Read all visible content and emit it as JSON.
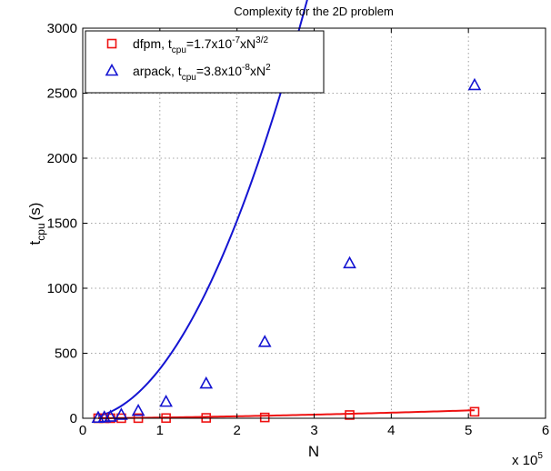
{
  "chart_data": {
    "type": "line",
    "title": "Complexity for the 2D problem",
    "xlabel": "N",
    "ylabel_main": "t",
    "ylabel_sub": "cpu",
    "ylabel_unit": "(s)",
    "x_exponent_label": "x 10",
    "x_exponent_power": "5",
    "xlim": [
      0,
      6
    ],
    "ylim": [
      0,
      3000
    ],
    "x_ticks": [
      0,
      1,
      2,
      3,
      4,
      5,
      6
    ],
    "x_tick_labels": [
      "0",
      "1",
      "2",
      "3",
      "4",
      "5",
      "6"
    ],
    "y_ticks": [
      0,
      500,
      1000,
      1500,
      2000,
      2500,
      3000
    ],
    "y_tick_labels": [
      "0",
      "500",
      "1000",
      "1500",
      "2000",
      "2500",
      "3000"
    ],
    "grid": true,
    "legend_placement": "top-left",
    "series": [
      {
        "key": "dfpm",
        "color": "#ee1111",
        "marker": "square",
        "legend": {
          "p1": "dfpm,  t",
          "sub": "cpu",
          "p2": "=1.7x10",
          "sup1": "-7",
          "p3": "xN",
          "sup2": "3/2"
        },
        "x": [
          0.2,
          0.28,
          0.36,
          0.5,
          0.72,
          1.08,
          1.6,
          2.36,
          3.46,
          5.08
        ],
        "y": [
          0.15,
          0.25,
          0.35,
          0.6,
          1.0,
          1.6,
          3.0,
          6.2,
          25,
          50
        ],
        "fit": {
          "coef": 1.7e-07,
          "power": 1.5,
          "scale": 100000
        }
      },
      {
        "key": "arpack",
        "color": "#1414d2",
        "marker": "triangle",
        "legend": {
          "p1": "arpack, t",
          "sub": "cpu",
          "p2": "=3.8x10",
          "sup1": "-8",
          "p3": "xN",
          "sup2": "2"
        },
        "x": [
          0.2,
          0.28,
          0.36,
          0.5,
          0.72,
          1.08,
          1.6,
          2.36,
          3.46,
          5.08
        ],
        "y": [
          2,
          5,
          10,
          25,
          55,
          125,
          265,
          585,
          1190,
          2560
        ],
        "fit": {
          "coef": 3.8e-08,
          "power": 2,
          "scale": 100000
        }
      }
    ]
  }
}
